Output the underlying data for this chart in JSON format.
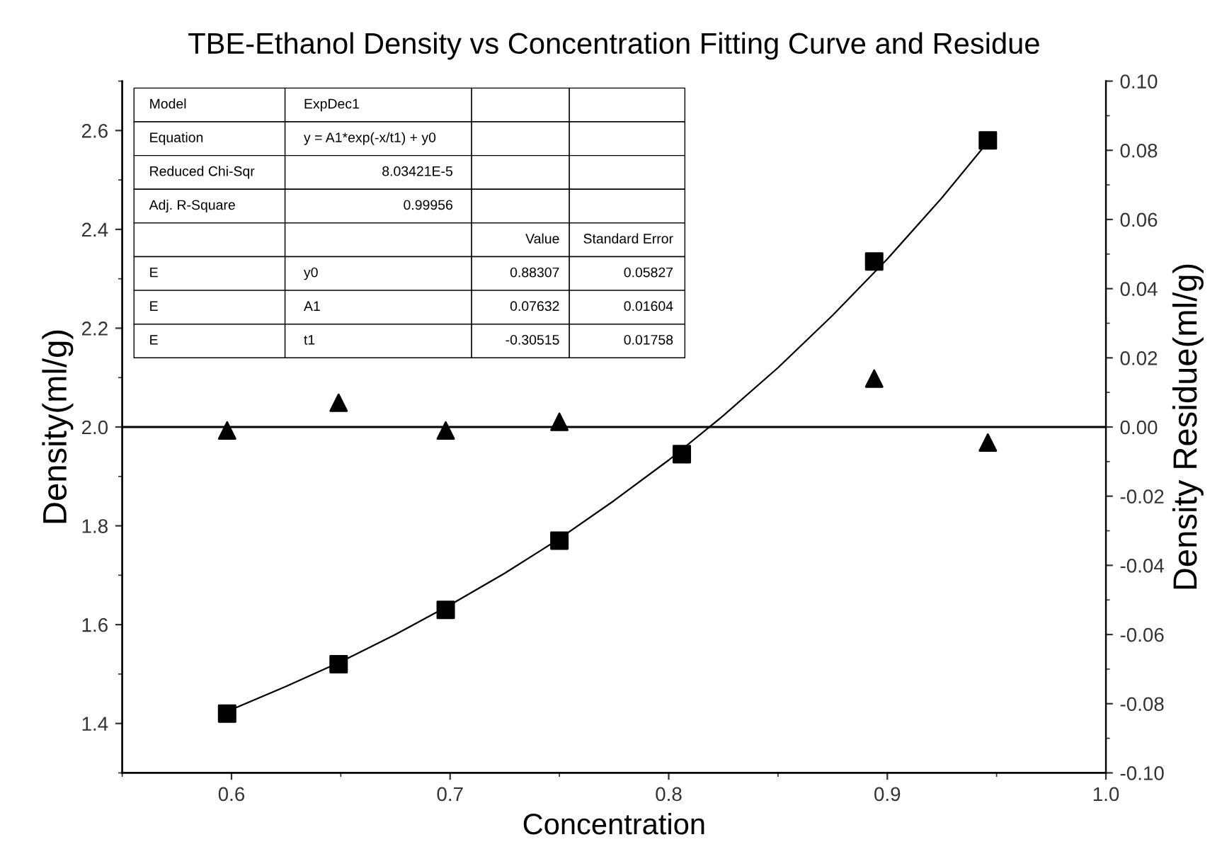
{
  "chart_data": {
    "type": "scatter",
    "title": "TBE-Ethanol Density vs Concentration Fitting Curve and Residue",
    "xlabel": "Concentration",
    "ylabel": "Density(ml/g)",
    "y2label": "Density Residue(ml/g)",
    "xlim": [
      0.55,
      1.0
    ],
    "xticks": [
      0.6,
      0.7,
      0.8,
      0.9,
      {
        "value": 1,
        "label": "1.0"
      }
    ],
    "ylim": [
      1.3,
      2.7
    ],
    "yticks": [
      1.4,
      1.6,
      1.8,
      {
        "value": 2,
        "label": "2.0"
      },
      2.2,
      2.4,
      2.6
    ],
    "y2lim": [
      -0.1,
      0.1
    ],
    "y2ticks": [
      {
        "value": 0.1,
        "label": "0.10"
      },
      {
        "value": 0.08,
        "label": "0.08"
      },
      {
        "value": 0.06,
        "label": "0.06"
      },
      {
        "value": 0.04,
        "label": "0.04"
      },
      {
        "value": 0.02,
        "label": "0.02"
      },
      {
        "value": 0,
        "label": "0.00"
      },
      {
        "value": -0.02,
        "label": "-0.02"
      },
      {
        "value": -0.04,
        "label": "-0.04"
      },
      {
        "value": -0.06,
        "label": "-0.06"
      },
      {
        "value": -0.08,
        "label": "-0.08"
      },
      {
        "value": -0.1,
        "label": "-0.10"
      }
    ],
    "grid": false,
    "legend": false,
    "series": [
      {
        "marker": "square",
        "color": "#000000",
        "x": [
          0.598,
          0.649,
          0.698,
          0.75,
          0.806,
          0.894,
          0.946
        ],
        "values": [
          1.42,
          1.52,
          1.63,
          1.77,
          1.945,
          2.335,
          2.58
        ]
      },
      {
        "type": "line",
        "marker": "none",
        "line_style": "solid",
        "color": "#000000",
        "x": [
          0.6,
          0.625,
          0.65,
          0.675,
          0.7,
          0.725,
          0.75,
          0.775,
          0.8,
          0.825,
          0.85,
          0.875,
          0.9,
          0.925,
          0.946
        ],
        "values": [
          1.428,
          1.475,
          1.525,
          1.58,
          1.64,
          1.704,
          1.774,
          1.851,
          1.933,
          2.023,
          2.12,
          2.226,
          2.34,
          2.464,
          2.577
        ]
      },
      {
        "marker": "triangle",
        "axis": "y2",
        "color": "#000000",
        "x": [
          0.598,
          0.649,
          0.698,
          0.75,
          0.894,
          0.946
        ],
        "values": [
          -0.001,
          0.007,
          -0.001,
          0.0015,
          0.014,
          -0.0045
        ]
      }
    ],
    "ref_lines": [
      {
        "axis": "y2",
        "value": 0,
        "color": "#000000",
        "line_style": "solid"
      }
    ],
    "annotations": [
      "Model",
      "ExpDec1",
      "Equation",
      "y = A1*exp(-x/t1) + y0",
      "Reduced Chi-Sqr",
      "8.03421E-5",
      "Adj. R-Square",
      "0.99956",
      "Value",
      "Standard Error",
      "E",
      "y0",
      "0.88307",
      "0.05827",
      "E",
      "A1",
      "0.07632",
      "0.01604",
      "E",
      "t1",
      "-0.30515",
      "0.01758"
    ]
  }
}
